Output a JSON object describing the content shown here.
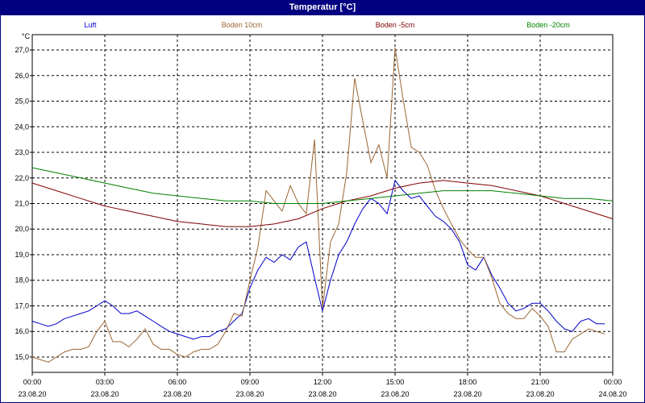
{
  "window": {
    "title": "Temperatur [°C]"
  },
  "chart_data": {
    "type": "line",
    "title": "Temperatur [°C]",
    "ylabel": "°C",
    "xlabel": "",
    "ylim": [
      14.4,
      27.6
    ],
    "yticks": [
      15.0,
      16.0,
      17.0,
      18.0,
      19.0,
      20.0,
      21.0,
      22.0,
      23.0,
      24.0,
      25.0,
      26.0,
      27.0
    ],
    "ytick_labels": [
      "15,0",
      "16,0",
      "17,0",
      "18,0",
      "19,0",
      "20,0",
      "21,0",
      "22,0",
      "23,0",
      "24,0",
      "25,0",
      "26,0",
      "27,0"
    ],
    "xlim": [
      0,
      24
    ],
    "xticks": [
      0,
      3,
      6,
      9,
      12,
      15,
      18,
      21,
      24
    ],
    "xtick_times": [
      "00:00",
      "03:00",
      "06:00",
      "09:00",
      "12:00",
      "15:00",
      "18:00",
      "21:00",
      "00:00"
    ],
    "xtick_dates": [
      "23.08.20",
      "23.08.20",
      "23.08.20",
      "23.08.20",
      "23.08.20",
      "23.08.20",
      "23.08.20",
      "23.08.20",
      "24.08.20"
    ],
    "grid": true,
    "legend_position": "top",
    "series": [
      {
        "name": "Luft",
        "color": "#0000cc",
        "points": [
          [
            0,
            16.4
          ],
          [
            0.33,
            16.3
          ],
          [
            0.67,
            16.2
          ],
          [
            1,
            16.3
          ],
          [
            1.33,
            16.5
          ],
          [
            1.67,
            16.6
          ],
          [
            2,
            16.7
          ],
          [
            2.33,
            16.8
          ],
          [
            2.67,
            17.0
          ],
          [
            3,
            17.2
          ],
          [
            3.33,
            17.0
          ],
          [
            3.67,
            16.7
          ],
          [
            4,
            16.7
          ],
          [
            4.33,
            16.8
          ],
          [
            4.67,
            16.6
          ],
          [
            5,
            16.4
          ],
          [
            5.33,
            16.2
          ],
          [
            5.67,
            16.0
          ],
          [
            6,
            15.9
          ],
          [
            6.33,
            15.8
          ],
          [
            6.67,
            15.7
          ],
          [
            7,
            15.8
          ],
          [
            7.33,
            15.8
          ],
          [
            7.67,
            16.0
          ],
          [
            8,
            16.1
          ],
          [
            8.33,
            16.4
          ],
          [
            8.67,
            16.7
          ],
          [
            9,
            17.7
          ],
          [
            9.33,
            18.4
          ],
          [
            9.67,
            18.9
          ],
          [
            10,
            18.7
          ],
          [
            10.33,
            19.0
          ],
          [
            10.67,
            18.8
          ],
          [
            11,
            19.3
          ],
          [
            11.33,
            19.5
          ],
          [
            11.67,
            18.1
          ],
          [
            12,
            16.8
          ],
          [
            12.33,
            18.0
          ],
          [
            12.67,
            19.0
          ],
          [
            13,
            19.5
          ],
          [
            13.33,
            20.2
          ],
          [
            13.67,
            20.8
          ],
          [
            14,
            21.2
          ],
          [
            14.33,
            21.0
          ],
          [
            14.67,
            20.6
          ],
          [
            15,
            21.9
          ],
          [
            15.33,
            21.5
          ],
          [
            15.67,
            21.2
          ],
          [
            16,
            21.3
          ],
          [
            16.33,
            20.9
          ],
          [
            16.67,
            20.5
          ],
          [
            17,
            20.3
          ],
          [
            17.33,
            20.0
          ],
          [
            17.67,
            19.5
          ],
          [
            18,
            18.6
          ],
          [
            18.33,
            18.4
          ],
          [
            18.67,
            18.9
          ],
          [
            19,
            18.2
          ],
          [
            19.33,
            17.7
          ],
          [
            19.67,
            17.1
          ],
          [
            20,
            16.8
          ],
          [
            20.33,
            16.9
          ],
          [
            20.67,
            17.1
          ],
          [
            21,
            17.1
          ],
          [
            21.33,
            16.8
          ],
          [
            21.67,
            16.4
          ],
          [
            22,
            16.1
          ],
          [
            22.33,
            16.0
          ],
          [
            22.67,
            16.4
          ],
          [
            23,
            16.5
          ],
          [
            23.33,
            16.3
          ],
          [
            23.67,
            16.3
          ]
        ]
      },
      {
        "name": "Boden 10cm",
        "color": "#996633",
        "points": [
          [
            0,
            15.0
          ],
          [
            0.33,
            14.9
          ],
          [
            0.67,
            14.8
          ],
          [
            1,
            15.0
          ],
          [
            1.33,
            15.2
          ],
          [
            1.67,
            15.3
          ],
          [
            2,
            15.3
          ],
          [
            2.33,
            15.4
          ],
          [
            2.67,
            16.0
          ],
          [
            3,
            16.4
          ],
          [
            3.33,
            15.6
          ],
          [
            3.67,
            15.6
          ],
          [
            4,
            15.4
          ],
          [
            4.33,
            15.7
          ],
          [
            4.67,
            16.1
          ],
          [
            5,
            15.5
          ],
          [
            5.33,
            15.3
          ],
          [
            5.67,
            15.3
          ],
          [
            6,
            15.1
          ],
          [
            6.33,
            15.0
          ],
          [
            6.67,
            15.2
          ],
          [
            7,
            15.3
          ],
          [
            7.33,
            15.3
          ],
          [
            7.67,
            15.5
          ],
          [
            8,
            16.0
          ],
          [
            8.33,
            16.7
          ],
          [
            8.67,
            16.6
          ],
          [
            9,
            18.0
          ],
          [
            9.33,
            19.3
          ],
          [
            9.67,
            21.5
          ],
          [
            10,
            21.1
          ],
          [
            10.33,
            20.7
          ],
          [
            10.67,
            21.7
          ],
          [
            11,
            21.0
          ],
          [
            11.33,
            20.6
          ],
          [
            11.67,
            23.5
          ],
          [
            12,
            16.9
          ],
          [
            12.33,
            19.5
          ],
          [
            12.67,
            20.2
          ],
          [
            13,
            22.2
          ],
          [
            13.33,
            25.9
          ],
          [
            13.67,
            24.2
          ],
          [
            14,
            22.6
          ],
          [
            14.33,
            23.3
          ],
          [
            14.67,
            22.0
          ],
          [
            15,
            27.1
          ],
          [
            15.33,
            25.1
          ],
          [
            15.67,
            23.2
          ],
          [
            16,
            23.0
          ],
          [
            16.33,
            22.5
          ],
          [
            16.67,
            21.5
          ],
          [
            17,
            20.8
          ],
          [
            17.33,
            20.2
          ],
          [
            17.67,
            19.6
          ],
          [
            18,
            19.2
          ],
          [
            18.33,
            18.9
          ],
          [
            18.67,
            18.9
          ],
          [
            19,
            18.1
          ],
          [
            19.33,
            17.1
          ],
          [
            19.67,
            16.7
          ],
          [
            20,
            16.5
          ],
          [
            20.33,
            16.5
          ],
          [
            20.67,
            16.9
          ],
          [
            21,
            16.6
          ],
          [
            21.33,
            16.2
          ],
          [
            21.67,
            15.2
          ],
          [
            22,
            15.2
          ],
          [
            22.33,
            15.7
          ],
          [
            22.67,
            15.9
          ],
          [
            23,
            16.1
          ],
          [
            23.33,
            16.0
          ],
          [
            23.67,
            15.9
          ]
        ]
      },
      {
        "name": "Boden -5cm",
        "color": "#800000",
        "points": [
          [
            0,
            21.8
          ],
          [
            1,
            21.5
          ],
          [
            2,
            21.2
          ],
          [
            3,
            20.9
          ],
          [
            4,
            20.7
          ],
          [
            5,
            20.5
          ],
          [
            6,
            20.3
          ],
          [
            7,
            20.2
          ],
          [
            8,
            20.1
          ],
          [
            9,
            20.1
          ],
          [
            10,
            20.2
          ],
          [
            11,
            20.4
          ],
          [
            12,
            20.8
          ],
          [
            13,
            21.1
          ],
          [
            14,
            21.3
          ],
          [
            15,
            21.6
          ],
          [
            16,
            21.8
          ],
          [
            17,
            21.9
          ],
          [
            18,
            21.8
          ],
          [
            19,
            21.7
          ],
          [
            20,
            21.5
          ],
          [
            21,
            21.3
          ],
          [
            22,
            21.0
          ],
          [
            23,
            20.7
          ],
          [
            24,
            20.4
          ]
        ]
      },
      {
        "name": "Boden -20cm",
        "color": "#008000",
        "points": [
          [
            0,
            22.4
          ],
          [
            1,
            22.2
          ],
          [
            2,
            22.0
          ],
          [
            3,
            21.8
          ],
          [
            4,
            21.6
          ],
          [
            5,
            21.4
          ],
          [
            6,
            21.3
          ],
          [
            7,
            21.2
          ],
          [
            8,
            21.1
          ],
          [
            9,
            21.1
          ],
          [
            10,
            21.0
          ],
          [
            11,
            21.0
          ],
          [
            12,
            21.0
          ],
          [
            13,
            21.1
          ],
          [
            14,
            21.2
          ],
          [
            15,
            21.3
          ],
          [
            16,
            21.4
          ],
          [
            17,
            21.5
          ],
          [
            18,
            21.5
          ],
          [
            19,
            21.5
          ],
          [
            20,
            21.4
          ],
          [
            21,
            21.3
          ],
          [
            22,
            21.2
          ],
          [
            23,
            21.2
          ],
          [
            24,
            21.1
          ]
        ]
      }
    ]
  }
}
